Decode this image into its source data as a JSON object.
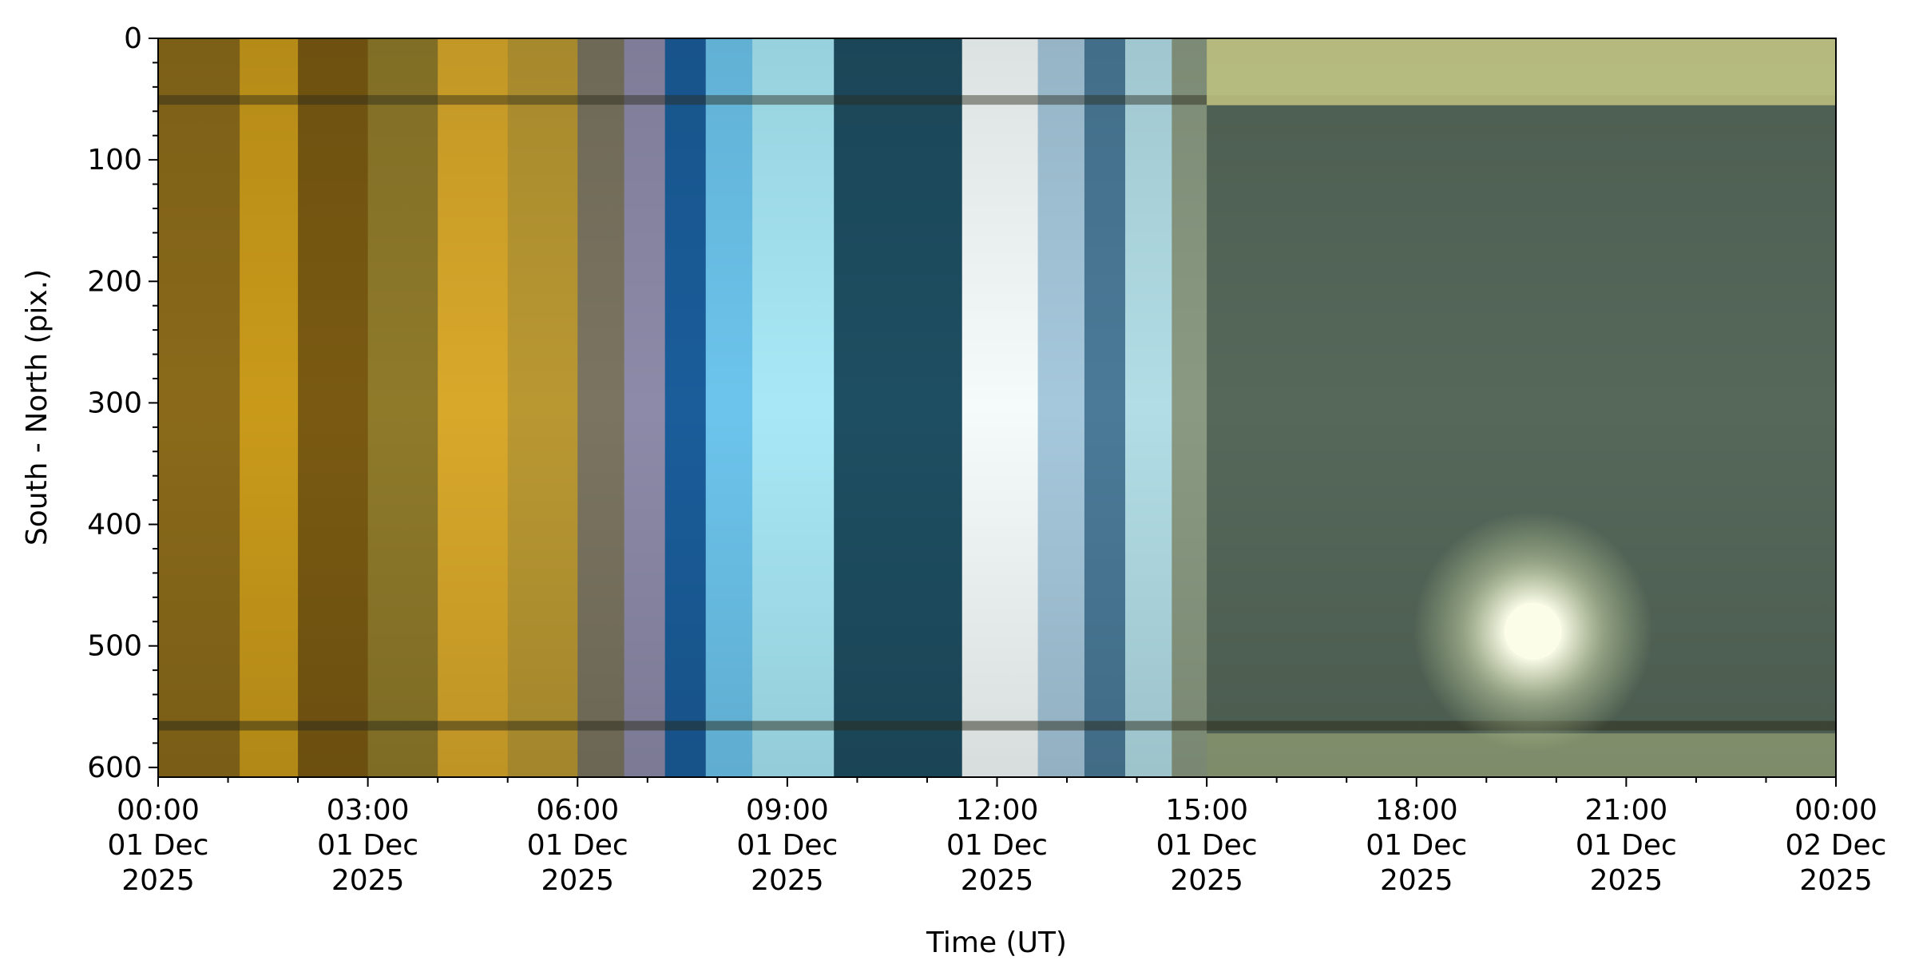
{
  "chart_data": {
    "type": "heatmap",
    "title": "",
    "xlabel": "Time (UT)",
    "ylabel": "South - North (pix.)",
    "x_range": [
      "2025-12-01T00:00",
      "2025-12-02T00:00"
    ],
    "ylim": [
      608,
      0
    ],
    "x_ticks": [
      {
        "t": "2025-12-01T00:00",
        "lines": [
          "00:00",
          "01 Dec",
          "2025"
        ]
      },
      {
        "t": "2025-12-01T03:00",
        "lines": [
          "03:00",
          "01 Dec",
          "2025"
        ]
      },
      {
        "t": "2025-12-01T06:00",
        "lines": [
          "06:00",
          "01 Dec",
          "2025"
        ]
      },
      {
        "t": "2025-12-01T09:00",
        "lines": [
          "09:00",
          "01 Dec",
          "2025"
        ]
      },
      {
        "t": "2025-12-01T12:00",
        "lines": [
          "12:00",
          "01 Dec",
          "2025"
        ]
      },
      {
        "t": "2025-12-01T15:00",
        "lines": [
          "15:00",
          "01 Dec",
          "2025"
        ]
      },
      {
        "t": "2025-12-01T18:00",
        "lines": [
          "18:00",
          "01 Dec",
          "2025"
        ]
      },
      {
        "t": "2025-12-01T21:00",
        "lines": [
          "21:00",
          "01 Dec",
          "2025"
        ]
      },
      {
        "t": "2025-12-02T00:00",
        "lines": [
          "00:00",
          "02 Dec",
          "2025"
        ]
      }
    ],
    "y_ticks": [
      0,
      100,
      200,
      300,
      400,
      500,
      600
    ],
    "grid": false,
    "legend": "none",
    "time_segments": [
      {
        "start": "00:00",
        "end": "01:10",
        "color": "#8a6a1a"
      },
      {
        "start": "01:10",
        "end": "02:00",
        "color": "#c99a1a"
      },
      {
        "start": "02:00",
        "end": "03:00",
        "color": "#7a5a12"
      },
      {
        "start": "03:00",
        "end": "04:00",
        "color": "#8f7a2a"
      },
      {
        "start": "04:00",
        "end": "05:00",
        "color": "#d8a82a"
      },
      {
        "start": "05:00",
        "end": "06:00",
        "color": "#b99832"
      },
      {
        "start": "06:00",
        "end": "06:40",
        "color": "#7a7460"
      },
      {
        "start": "06:40",
        "end": "07:15",
        "color": "#8c8aa8"
      },
      {
        "start": "07:15",
        "end": "07:50",
        "color": "#1a5d9a"
      },
      {
        "start": "07:50",
        "end": "08:30",
        "color": "#6cc4ec"
      },
      {
        "start": "08:30",
        "end": "09:40",
        "color": "#a8e8f6"
      },
      {
        "start": "09:40",
        "end": "11:30",
        "color": "#1e4e62"
      },
      {
        "start": "11:30",
        "end": "12:35",
        "color": "#f4fbfa"
      },
      {
        "start": "12:35",
        "end": "13:15",
        "color": "#a6c8dc"
      },
      {
        "start": "13:15",
        "end": "13:50",
        "color": "#4a7a98"
      },
      {
        "start": "13:50",
        "end": "14:30",
        "color": "#b2dde6"
      },
      {
        "start": "14:30",
        "end": "15:00",
        "color": "#8a9a82"
      },
      {
        "start": "15:00",
        "end": "24:00",
        "color": "#55685a"
      }
    ],
    "features": [
      {
        "name": "bright source",
        "t": "19:40",
        "y": 488,
        "color": "#fbfde8"
      }
    ]
  }
}
